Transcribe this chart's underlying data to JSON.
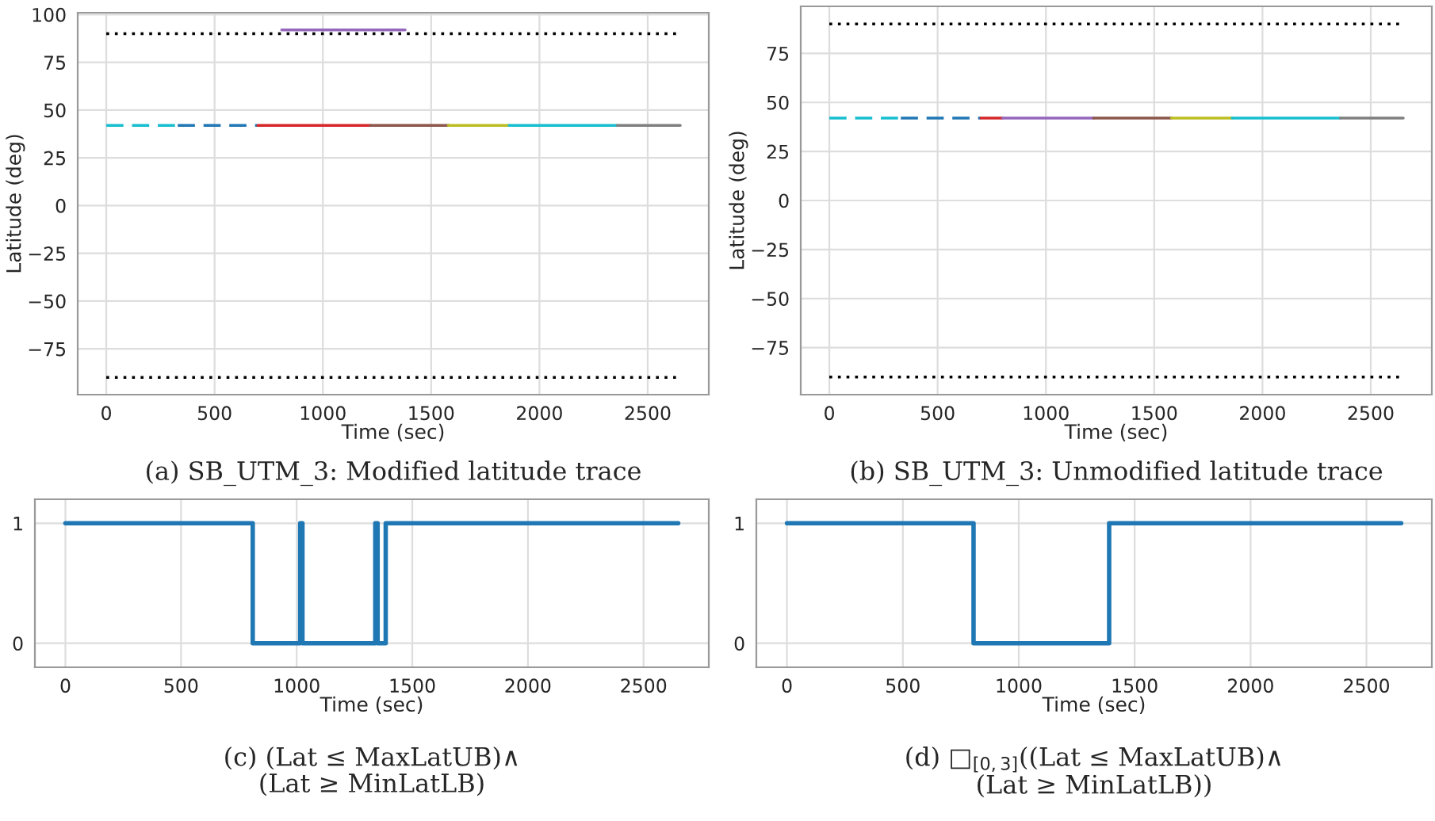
{
  "chart_data": [
    {
      "type": "line",
      "title": "(a) SB_UTM_3: Modified latitude trace",
      "xlabel": "Time (sec)",
      "ylabel": "Latitude (deg)",
      "xlim": [
        -132,
        2782
      ],
      "ylim": [
        -99,
        101
      ],
      "xticks": [
        0,
        500,
        1000,
        1500,
        2000,
        2500
      ],
      "yticks": [
        -75,
        -50,
        -25,
        0,
        25,
        50,
        75,
        100
      ],
      "grid": true,
      "series": [
        {
          "x": [
            0,
            2650
          ],
          "values": [
            90,
            90
          ],
          "color": "#000000",
          "line_style": "dotted"
        },
        {
          "x": [
            0,
            2650
          ],
          "values": [
            -90,
            -90
          ],
          "color": "#000000",
          "line_style": "dotted"
        },
        {
          "x": [
            0,
            330
          ],
          "values": [
            42,
            42
          ],
          "color": "#17becf",
          "line_style": "dashed"
        },
        {
          "x": [
            330,
            700
          ],
          "values": [
            42,
            42
          ],
          "color": "#1f77b4",
          "line_style": "dashed"
        },
        {
          "x": [
            700,
            1220
          ],
          "values": [
            42,
            42
          ],
          "color": "#d62728",
          "line_style": "solid"
        },
        {
          "x": [
            1220,
            1580
          ],
          "values": [
            42,
            42
          ],
          "color": "#8c564b",
          "line_style": "solid"
        },
        {
          "x": [
            1580,
            1860
          ],
          "values": [
            42,
            42
          ],
          "color": "#bcbd22",
          "line_style": "solid"
        },
        {
          "x": [
            1860,
            2360
          ],
          "values": [
            42,
            42
          ],
          "color": "#17becf",
          "line_style": "solid"
        },
        {
          "x": [
            2360,
            2650
          ],
          "values": [
            42,
            42
          ],
          "color": "#7f7f7f",
          "line_style": "solid"
        },
        {
          "x": [
            810,
            1380
          ],
          "values": [
            92,
            92
          ],
          "color": "#9467bd",
          "line_style": "solid"
        }
      ]
    },
    {
      "type": "line",
      "title": "(b) SB_UTM_3: Unmodified latitude trace",
      "xlabel": "Time (sec)",
      "ylabel": "Latitude (deg)",
      "xlim": [
        -132,
        2782
      ],
      "ylim": [
        -99,
        99
      ],
      "xticks": [
        0,
        500,
        1000,
        1500,
        2000,
        2500
      ],
      "yticks": [
        -75,
        -50,
        -25,
        0,
        25,
        50,
        75
      ],
      "grid": true,
      "series": [
        {
          "x": [
            0,
            2650
          ],
          "values": [
            90,
            90
          ],
          "color": "#000000",
          "line_style": "dotted"
        },
        {
          "x": [
            0,
            2650
          ],
          "values": [
            -90,
            -90
          ],
          "color": "#000000",
          "line_style": "dotted"
        },
        {
          "x": [
            0,
            330
          ],
          "values": [
            42,
            42
          ],
          "color": "#17becf",
          "line_style": "dashed"
        },
        {
          "x": [
            330,
            700
          ],
          "values": [
            42,
            42
          ],
          "color": "#1f77b4",
          "line_style": "dashed"
        },
        {
          "x": [
            700,
            800
          ],
          "values": [
            42,
            42
          ],
          "color": "#d62728",
          "line_style": "solid"
        },
        {
          "x": [
            800,
            1220
          ],
          "values": [
            42,
            42
          ],
          "color": "#9467bd",
          "line_style": "solid"
        },
        {
          "x": [
            1220,
            1580
          ],
          "values": [
            42,
            42
          ],
          "color": "#8c564b",
          "line_style": "solid"
        },
        {
          "x": [
            1580,
            1860
          ],
          "values": [
            42,
            42
          ],
          "color": "#bcbd22",
          "line_style": "solid"
        },
        {
          "x": [
            1860,
            2360
          ],
          "values": [
            42,
            42
          ],
          "color": "#17becf",
          "line_style": "solid"
        },
        {
          "x": [
            2360,
            2650
          ],
          "values": [
            42,
            42
          ],
          "color": "#7f7f7f",
          "line_style": "solid"
        }
      ]
    },
    {
      "type": "step",
      "title": "(c) (Lat ≤ MaxLatUB)∧\n(Lat ≥ MinLatLB)",
      "xlabel": "Time (sec)",
      "xlim": [
        -132,
        2782
      ],
      "ylim": [
        -0.2,
        1.2
      ],
      "xticks": [
        0,
        500,
        1000,
        1500,
        2000,
        2500
      ],
      "yticks": [
        0,
        1
      ],
      "grid": true,
      "series": [
        {
          "x": [
            0,
            810,
            1015,
            1025,
            1340,
            1350,
            1385,
            2650
          ],
          "values": [
            1,
            0,
            1,
            0,
            1,
            0,
            1,
            1
          ],
          "color": "#1f77b4"
        }
      ]
    },
    {
      "type": "step",
      "title": "(d) □$_{[0,3]}$((Lat ≤ MaxLatUB)∧\n(Lat ≥ MinLatLB))",
      "xlabel": "Time (sec)",
      "xlim": [
        -132,
        2782
      ],
      "ylim": [
        -0.2,
        1.2
      ],
      "xticks": [
        0,
        500,
        1000,
        1500,
        2000,
        2500
      ],
      "yticks": [
        0,
        1
      ],
      "grid": true,
      "series": [
        {
          "x": [
            0,
            805,
            1390,
            2650
          ],
          "values": [
            1,
            0,
            1,
            1
          ],
          "color": "#1f77b4"
        }
      ]
    }
  ]
}
